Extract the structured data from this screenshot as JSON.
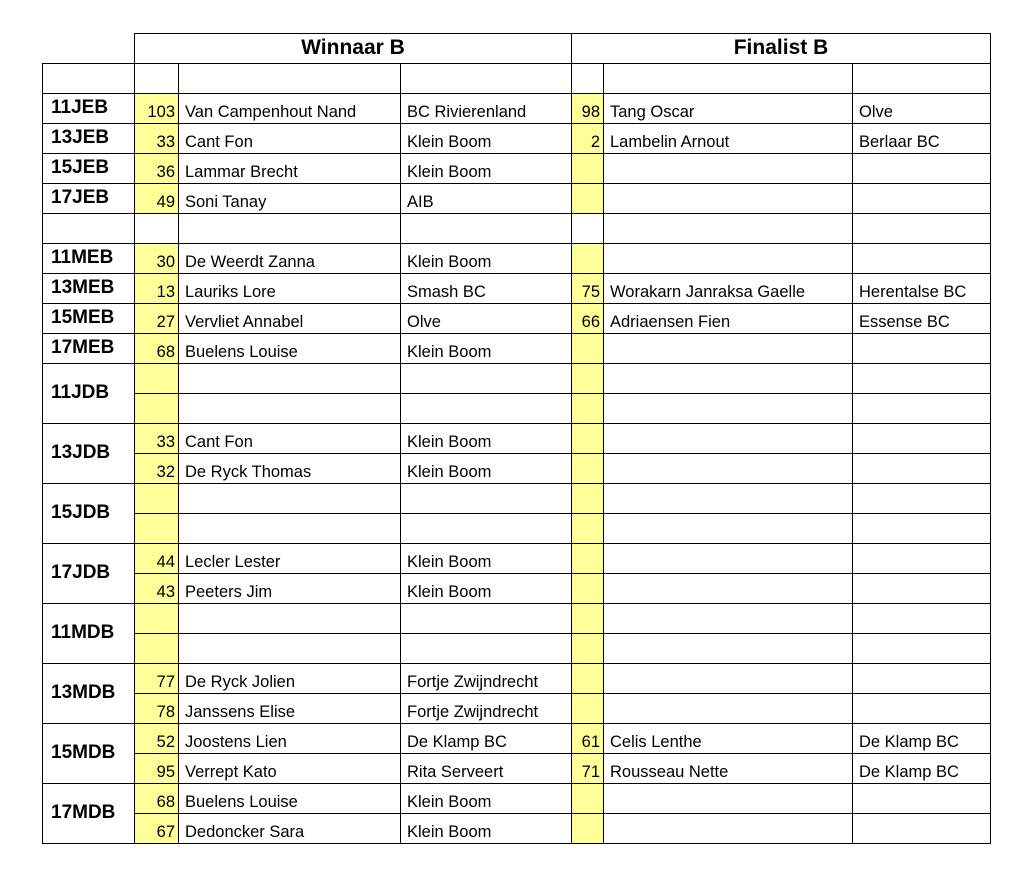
{
  "header": {
    "winner": "Winnaar B",
    "finalist": "Finalist B"
  },
  "colors": {
    "number_cell": "#ffff99"
  },
  "sections": [
    {
      "label": "11JEB",
      "rows": [
        {
          "w_num": "103",
          "w_name": "Van Campenhout Nand",
          "w_club": "BC Rivierenland",
          "f_num": "98",
          "f_name": "Tang Oscar",
          "f_club": "Olve"
        }
      ]
    },
    {
      "label": "13JEB",
      "rows": [
        {
          "w_num": "33",
          "w_name": "Cant Fon",
          "w_club": "Klein Boom",
          "f_num": "2",
          "f_name": "Lambelin Arnout",
          "f_club": "Berlaar BC"
        }
      ]
    },
    {
      "label": "15JEB",
      "rows": [
        {
          "w_num": "36",
          "w_name": "Lammar Brecht",
          "w_club": "Klein Boom",
          "f_num": "",
          "f_name": "",
          "f_club": ""
        }
      ]
    },
    {
      "label": "17JEB",
      "rows": [
        {
          "w_num": "49",
          "w_name": "Soni Tanay",
          "w_club": "AIB",
          "f_num": "",
          "f_name": "",
          "f_club": ""
        }
      ]
    },
    {
      "label": "",
      "blank": true,
      "rows": [
        {
          "w_num": "",
          "w_name": "",
          "w_club": "",
          "f_num": "",
          "f_name": "",
          "f_club": ""
        }
      ]
    },
    {
      "label": "11MEB",
      "rows": [
        {
          "w_num": "30",
          "w_name": "De Weerdt Zanna",
          "w_club": "Klein Boom",
          "f_num": "",
          "f_name": "",
          "f_club": ""
        }
      ]
    },
    {
      "label": "13MEB",
      "rows": [
        {
          "w_num": "13",
          "w_name": "Lauriks Lore",
          "w_club": "Smash BC",
          "f_num": "75",
          "f_name": "Worakarn Janraksa Gaelle",
          "f_club": "Herentalse BC"
        }
      ]
    },
    {
      "label": "15MEB",
      "rows": [
        {
          "w_num": "27",
          "w_name": "Vervliet Annabel",
          "w_club": "Olve",
          "f_num": "66",
          "f_name": "Adriaensen Fien",
          "f_club": "Essense BC"
        }
      ]
    },
    {
      "label": "17MEB",
      "rows": [
        {
          "w_num": "68",
          "w_name": "Buelens Louise",
          "w_club": "Klein Boom",
          "f_num": "",
          "f_name": "",
          "f_club": ""
        }
      ]
    },
    {
      "label": "11JDB",
      "rows": [
        {
          "w_num": "",
          "w_name": "",
          "w_club": "",
          "f_num": "",
          "f_name": "",
          "f_club": ""
        },
        {
          "w_num": "",
          "w_name": "",
          "w_club": "",
          "f_num": "",
          "f_name": "",
          "f_club": ""
        }
      ]
    },
    {
      "label": "13JDB",
      "rows": [
        {
          "w_num": "33",
          "w_name": "Cant Fon",
          "w_club": "Klein Boom",
          "f_num": "",
          "f_name": "",
          "f_club": ""
        },
        {
          "w_num": "32",
          "w_name": "De Ryck Thomas",
          "w_club": "Klein Boom",
          "f_num": "",
          "f_name": "",
          "f_club": ""
        }
      ]
    },
    {
      "label": "15JDB",
      "rows": [
        {
          "w_num": "",
          "w_name": "",
          "w_club": "",
          "f_num": "",
          "f_name": "",
          "f_club": ""
        },
        {
          "w_num": "",
          "w_name": "",
          "w_club": "",
          "f_num": "",
          "f_name": "",
          "f_club": ""
        }
      ]
    },
    {
      "label": "17JDB",
      "rows": [
        {
          "w_num": "44",
          "w_name": "Lecler Lester",
          "w_club": "Klein Boom",
          "f_num": "",
          "f_name": "",
          "f_club": ""
        },
        {
          "w_num": "43",
          "w_name": "Peeters Jim",
          "w_club": "Klein Boom",
          "f_num": "",
          "f_name": "",
          "f_club": ""
        }
      ]
    },
    {
      "label": "11MDB",
      "rows": [
        {
          "w_num": "",
          "w_name": "",
          "w_club": "",
          "f_num": "",
          "f_name": "",
          "f_club": ""
        },
        {
          "w_num": "",
          "w_name": "",
          "w_club": "",
          "f_num": "",
          "f_name": "",
          "f_club": ""
        }
      ]
    },
    {
      "label": "13MDB",
      "rows": [
        {
          "w_num": "77",
          "w_name": "De Ryck Jolien",
          "w_club": "Fortje Zwijndrecht",
          "f_num": "",
          "f_name": "",
          "f_club": ""
        },
        {
          "w_num": "78",
          "w_name": "Janssens Elise",
          "w_club": "Fortje Zwijndrecht",
          "f_num": "",
          "f_name": "",
          "f_club": ""
        }
      ]
    },
    {
      "label": "15MDB",
      "rows": [
        {
          "w_num": "52",
          "w_name": "Joostens Lien",
          "w_club": "De Klamp BC",
          "f_num": "61",
          "f_name": "Celis Lenthe",
          "f_club": "De Klamp BC"
        },
        {
          "w_num": "95",
          "w_name": "Verrept Kato",
          "w_club": "Rita Serveert",
          "f_num": "71",
          "f_name": "Rousseau Nette",
          "f_club": "De Klamp BC"
        }
      ]
    },
    {
      "label": "17MDB",
      "rows": [
        {
          "w_num": "68",
          "w_name": "Buelens Louise",
          "w_club": "Klein Boom",
          "f_num": "",
          "f_name": "",
          "f_club": ""
        },
        {
          "w_num": "67",
          "w_name": "Dedoncker Sara",
          "w_club": "Klein Boom",
          "f_num": "",
          "f_name": "",
          "f_club": ""
        }
      ]
    }
  ]
}
